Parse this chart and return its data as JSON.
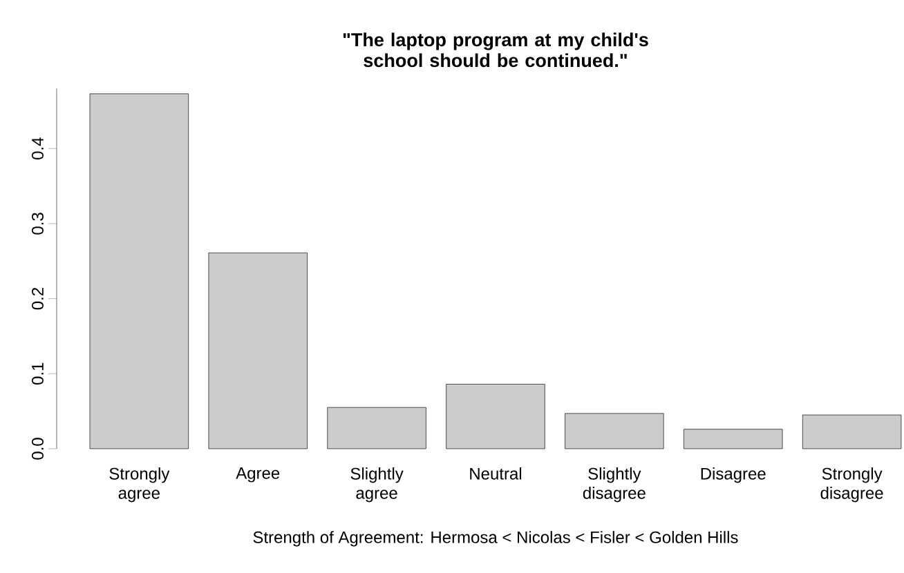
{
  "chart_data": {
    "type": "bar",
    "title": "\"The laptop program at my child's school should be continued.\"",
    "xlabel": "Strength of Agreement: Hermosa < Nicolas < Fisler < Golden Hills",
    "categories": [
      "Strongly agree",
      "Agree",
      "Slightly agree",
      "Neutral",
      "Slightly disagree",
      "Disagree",
      "Strongly disagree"
    ],
    "values": [
      0.473,
      0.261,
      0.055,
      0.086,
      0.047,
      0.026,
      0.045
    ],
    "color": "#cccccc",
    "ylim": [
      0,
      0.48
    ],
    "yticks": [
      {
        "value": 0,
        "label": "0.0"
      },
      0.1,
      0.2,
      0.3,
      0.4
    ]
  }
}
